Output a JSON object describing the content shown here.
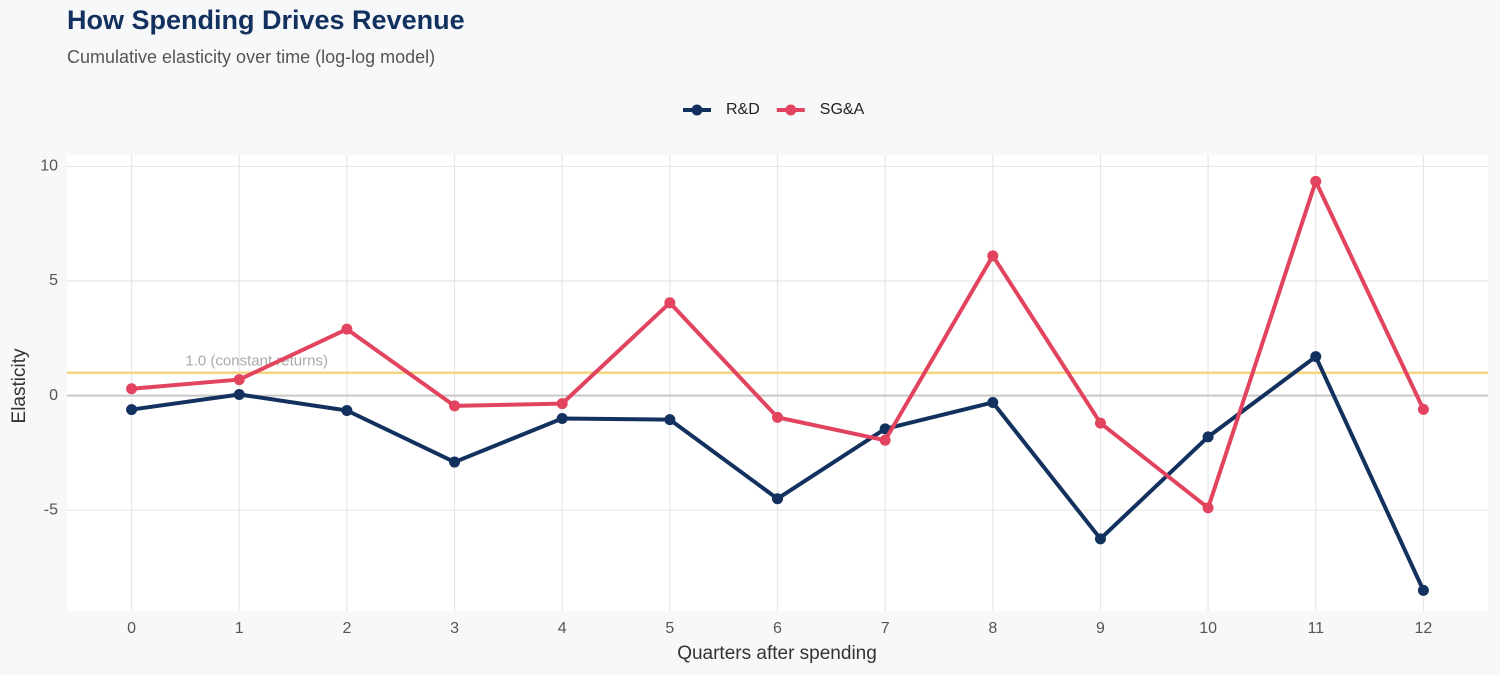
{
  "chart_data": {
    "type": "line",
    "title": "How Spending Drives Revenue",
    "subtitle": "Cumulative elasticity over time (log-log model)",
    "x_label": "Quarters after spending",
    "y_label": "Elasticity",
    "x": [
      0,
      1,
      2,
      3,
      4,
      5,
      6,
      7,
      8,
      9,
      10,
      11,
      12
    ],
    "series": [
      {
        "name": "R&D",
        "color": "#12315e",
        "values": [
          -0.61,
          0.05,
          -0.65,
          -2.9,
          -1.0,
          -1.05,
          -4.5,
          -1.45,
          -0.3,
          -6.25,
          -1.8,
          1.7,
          -8.5
        ]
      },
      {
        "name": "SG&A",
        "color": "#e2445f",
        "values": [
          0.3,
          0.7,
          2.9,
          -0.45,
          -0.35,
          4.05,
          -0.95,
          -1.95,
          6.1,
          -1.2,
          -4.9,
          9.35,
          -0.6
        ]
      }
    ],
    "xlim": [
      -0.6,
      12.6
    ],
    "xticks": [
      0,
      1,
      2,
      3,
      4,
      5,
      6,
      7,
      8,
      9,
      10,
      11,
      12
    ],
    "ylim": [
      -9.4,
      10.5
    ],
    "yticks": [
      -5,
      0,
      5,
      10
    ],
    "reference_line": {
      "value": 1,
      "label": "1.0 (constant returns)",
      "color": "#f5d580"
    },
    "zero_line": true,
    "grid": true,
    "legend": "top"
  }
}
